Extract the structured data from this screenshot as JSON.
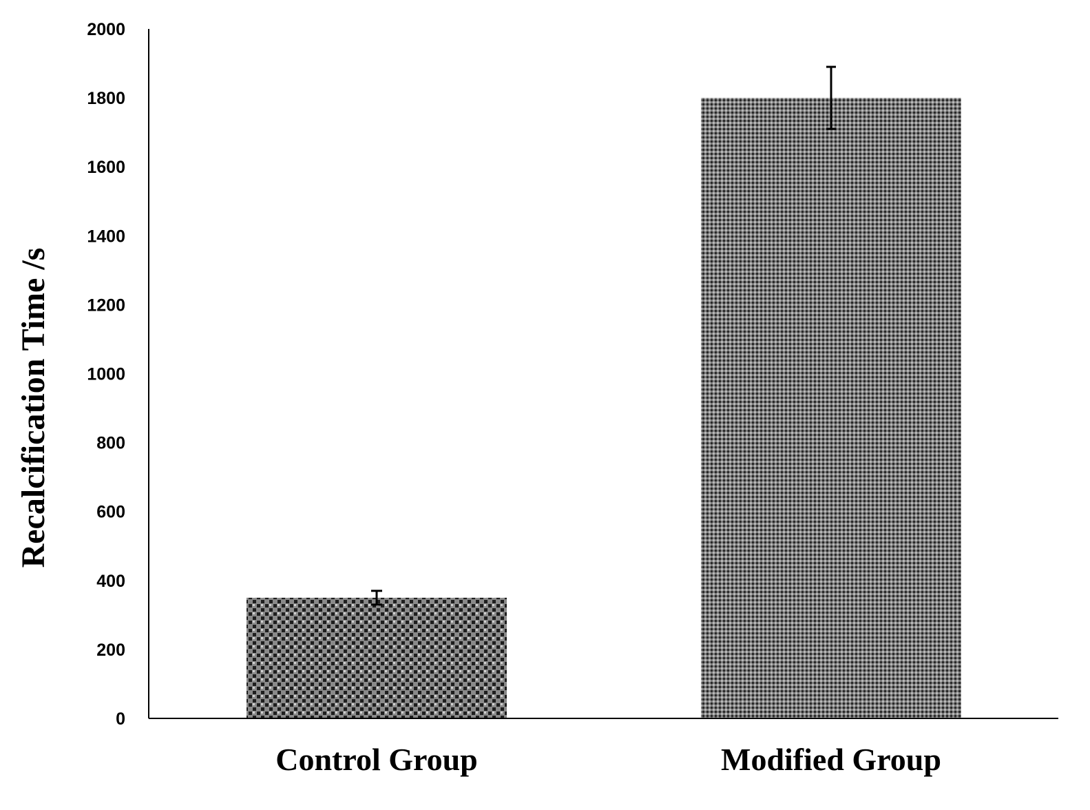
{
  "chart_data": {
    "type": "bar",
    "title": "",
    "xlabel": "",
    "ylabel": "Recalcification Time /s",
    "categories": [
      "Control Group",
      "Modified Group"
    ],
    "values": [
      350,
      1800
    ],
    "error_bars": [
      20,
      90
    ],
    "ylim": [
      0,
      2000
    ],
    "yticks": [
      "0",
      "200",
      "400",
      "600",
      "800",
      "1000",
      "1200",
      "1400",
      "1600",
      "1800",
      "2000"
    ],
    "ytick_values": [
      0,
      200,
      400,
      600,
      800,
      1000,
      1200,
      1400,
      1600,
      1800,
      2000
    ],
    "grid": false,
    "legend": "none",
    "bar_patterns": [
      "checker-dots",
      "fine-dots"
    ],
    "colors": {
      "bar_fill": "#808080",
      "bar_pattern": "#1a1a1a",
      "axis": "#000000",
      "error_bar": "#000000"
    }
  }
}
